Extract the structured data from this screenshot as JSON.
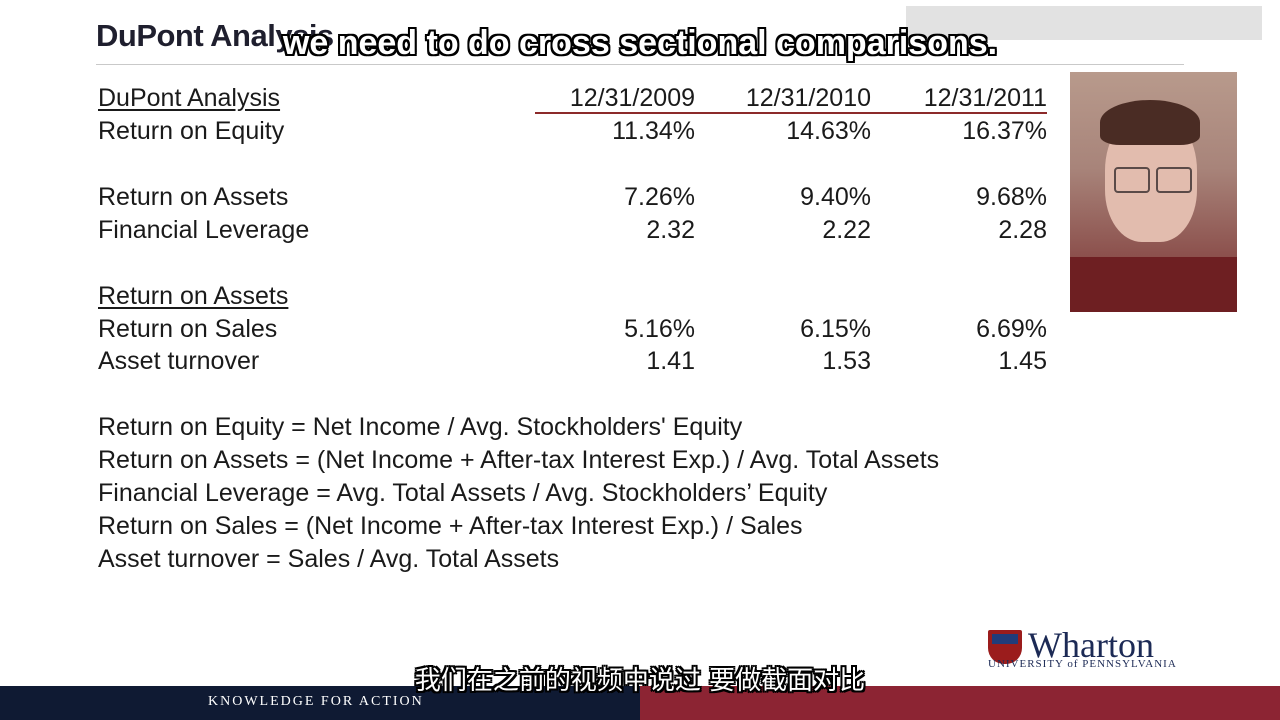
{
  "slide": {
    "title": "DuPont Analysis"
  },
  "overlay": {
    "subtitle_en": "we need to do cross sectional comparisons.",
    "subtitle_zh": "我们在之前的视频中说过 要做截面对比"
  },
  "table": {
    "header_label": "DuPont Analysis",
    "dates": [
      "12/31/2009",
      "12/31/2010",
      "12/31/2011"
    ],
    "roe": {
      "label": "Return on Equity",
      "values": [
        "11.34%",
        "14.63%",
        "16.37%"
      ]
    },
    "roa": {
      "label": "Return on Assets",
      "values": [
        "7.26%",
        "9.40%",
        "9.68%"
      ]
    },
    "leverage": {
      "label": "Financial Leverage",
      "values": [
        "2.32",
        "2.22",
        "2.28"
      ]
    },
    "roa_header": "Return on Assets",
    "ros": {
      "label": "Return on Sales",
      "values": [
        "5.16%",
        "6.15%",
        "6.69%"
      ]
    },
    "turnover": {
      "label": "Asset turnover",
      "values": [
        "1.41",
        "1.53",
        "1.45"
      ]
    }
  },
  "formulas": [
    "Return on Equity = Net Income / Avg. Stockholders' Equity",
    "Return on Assets = (Net Income + After-tax Interest Exp.) / Avg. Total Assets",
    "Financial Leverage = Avg. Total Assets / Avg. Stockholders’ Equity",
    "Return on Sales =  (Net Income + After-tax Interest Exp.) / Sales",
    "Asset turnover = Sales / Avg. Total Assets"
  ],
  "branding": {
    "wordmark": "Wharton",
    "university": "UNIVERSITY of PENNSYLVANIA",
    "tagline": "KNOWLEDGE FOR ACTION"
  },
  "colors": {
    "accent_red": "#8c2433",
    "navy": "#0f1a33",
    "rule_red": "#8c2a2a"
  },
  "icons": [
    "presenter-photo",
    "penn-shield-logo"
  ]
}
